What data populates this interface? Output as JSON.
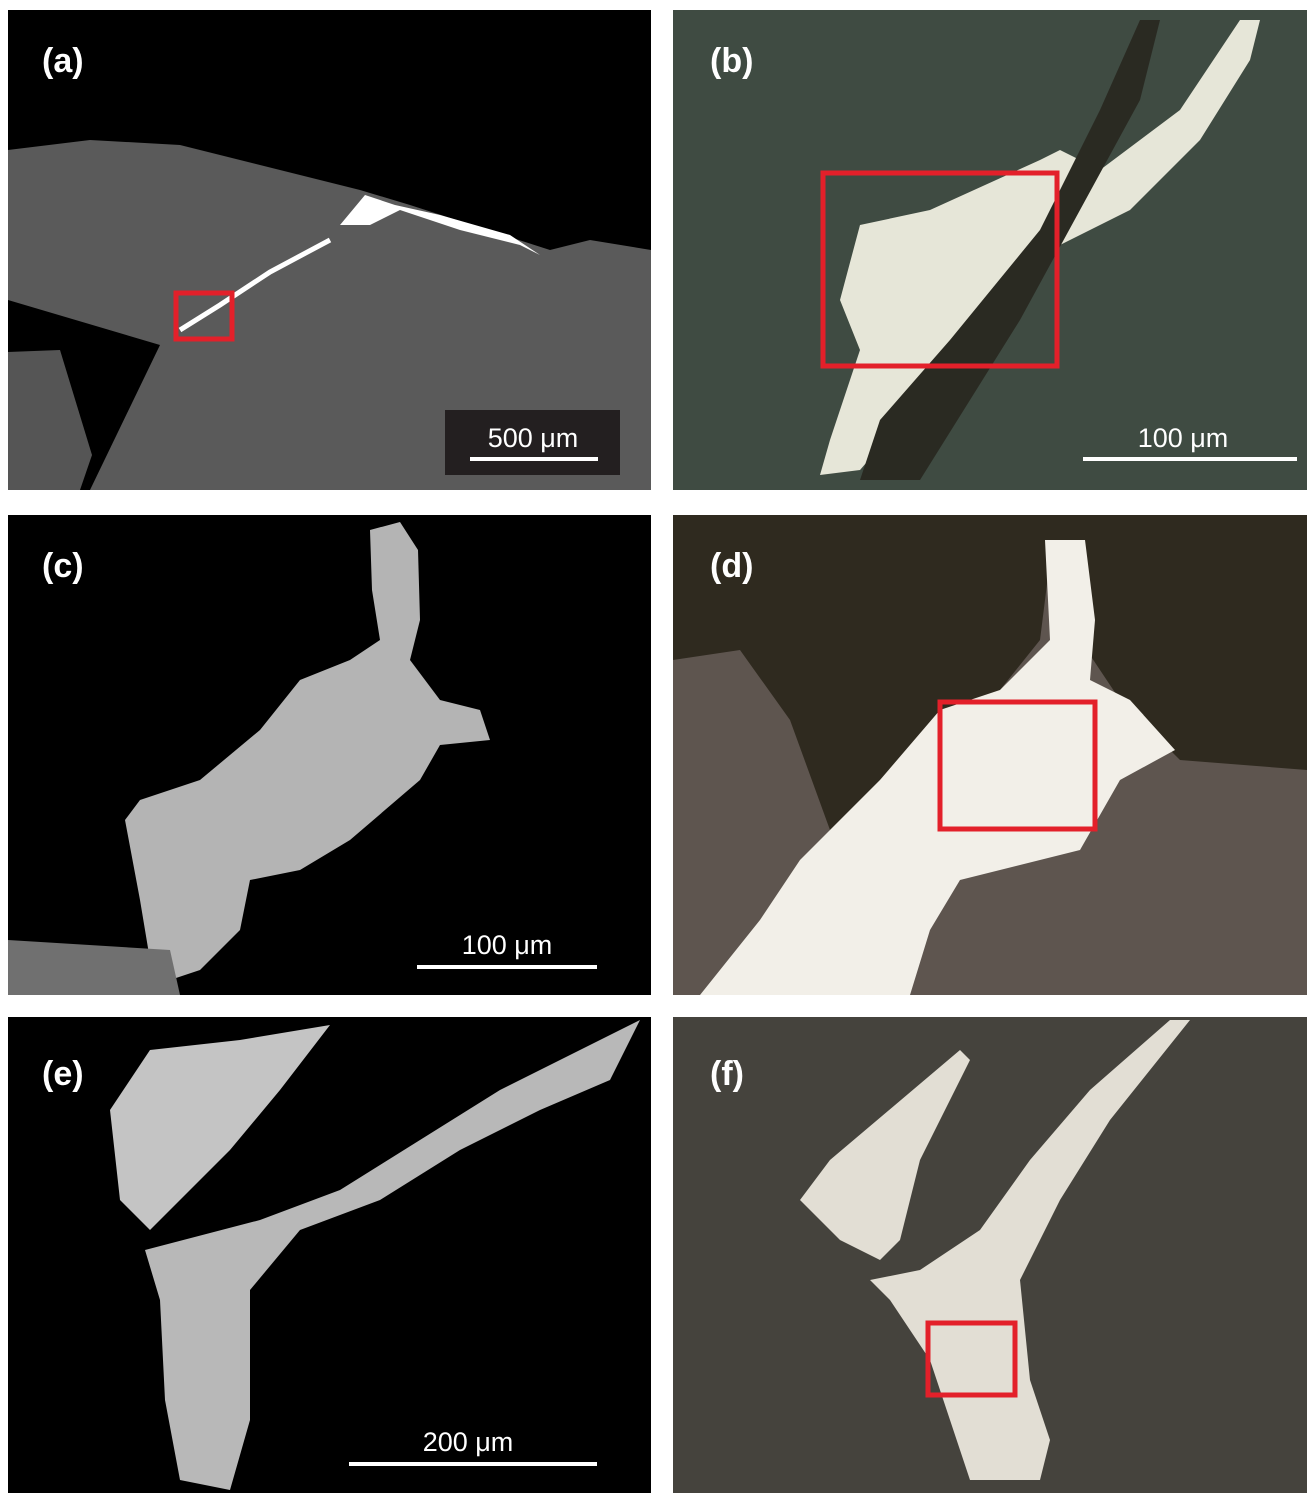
{
  "panels": [
    {
      "label": "(a)",
      "scale_bar": "500 μm"
    },
    {
      "label": "(b)",
      "scale_bar": "100 μm"
    },
    {
      "label": "(c)",
      "scale_bar": "100 μm"
    },
    {
      "label": "(d)"
    },
    {
      "label": "(e)",
      "scale_bar": "200 μm"
    },
    {
      "label": "(f)"
    }
  ]
}
